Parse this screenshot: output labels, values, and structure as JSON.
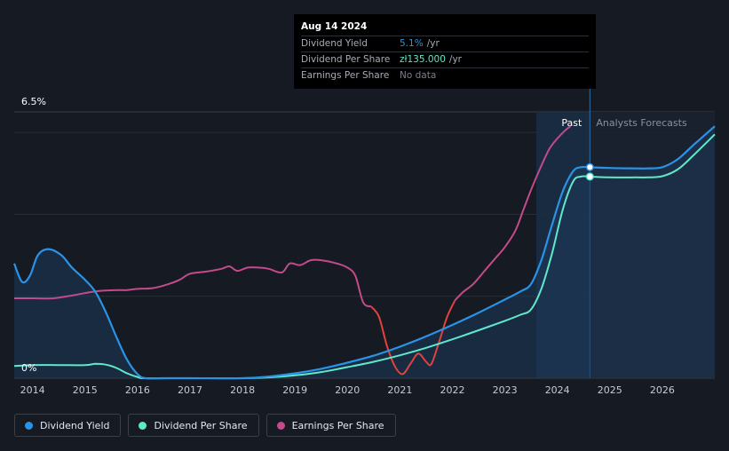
{
  "tooltip": {
    "date": "Aug 14 2024",
    "rows": [
      {
        "label": "Dividend Yield",
        "value": "5.1%",
        "unit": "/yr",
        "color": "#2a93e6"
      },
      {
        "label": "Dividend Per Share",
        "value": "zł135.000",
        "unit": "/yr",
        "color": "#5fe8cc"
      },
      {
        "label": "Earnings Per Share",
        "value": "No data",
        "unit": "",
        "color": "#7a7f88"
      }
    ]
  },
  "legend": [
    {
      "label": "Dividend Yield",
      "color": "#2a93e6"
    },
    {
      "label": "Dividend Per Share",
      "color": "#5fe8cc"
    },
    {
      "label": "Earnings Per Share",
      "color": "#c44a8a"
    }
  ],
  "chart_data": {
    "type": "line",
    "y_max_label": "6.5%",
    "y_min_label": "0%",
    "ylim": [
      0,
      6.5
    ],
    "xlim": [
      2013.65,
      2027.0
    ],
    "x_ticks": [
      "2014",
      "2015",
      "2016",
      "2017",
      "2018",
      "2019",
      "2020",
      "2021",
      "2022",
      "2023",
      "2024",
      "2025",
      "2026"
    ],
    "regions": {
      "past_label": "Past",
      "forecast_label": "Analysts Forecasts",
      "past_start": 2023.6,
      "forecast_start": 2024.62
    },
    "grid": true,
    "legend_position": "bottom-left",
    "colors": {
      "dividend_yield": "#2a93e6",
      "dividend_per_share": "#5fe8cc",
      "earnings_per_share": "#c44a8a",
      "earnings_negative": "#e0423d"
    },
    "series": [
      {
        "name": "Dividend Yield",
        "points": [
          [
            2013.65,
            2.8
          ],
          [
            2013.8,
            2.35
          ],
          [
            2013.95,
            2.5
          ],
          [
            2014.1,
            3.0
          ],
          [
            2014.3,
            3.15
          ],
          [
            2014.55,
            3.0
          ],
          [
            2014.75,
            2.7
          ],
          [
            2015.0,
            2.4
          ],
          [
            2015.2,
            2.1
          ],
          [
            2015.4,
            1.6
          ],
          [
            2015.6,
            1.0
          ],
          [
            2015.8,
            0.45
          ],
          [
            2016.0,
            0.1
          ],
          [
            2016.15,
            0.0
          ],
          [
            2016.5,
            0.0
          ],
          [
            2017.0,
            0.0
          ],
          [
            2018.0,
            0.0
          ],
          [
            2018.5,
            0.04
          ],
          [
            2019.0,
            0.12
          ],
          [
            2019.5,
            0.23
          ],
          [
            2020.0,
            0.38
          ],
          [
            2020.5,
            0.55
          ],
          [
            2021.0,
            0.77
          ],
          [
            2021.5,
            1.02
          ],
          [
            2022.0,
            1.3
          ],
          [
            2022.5,
            1.6
          ],
          [
            2023.0,
            1.92
          ],
          [
            2023.3,
            2.12
          ],
          [
            2023.5,
            2.3
          ],
          [
            2023.7,
            2.9
          ],
          [
            2023.9,
            3.75
          ],
          [
            2024.1,
            4.55
          ],
          [
            2024.3,
            5.05
          ],
          [
            2024.45,
            5.15
          ],
          [
            2024.62,
            5.15
          ],
          [
            2025.0,
            5.13
          ],
          [
            2025.5,
            5.12
          ],
          [
            2025.7,
            5.12
          ],
          [
            2026.0,
            5.15
          ],
          [
            2026.3,
            5.35
          ],
          [
            2026.6,
            5.7
          ],
          [
            2027.0,
            6.15
          ]
        ]
      },
      {
        "name": "Dividend Per Share",
        "points": [
          [
            2013.65,
            0.3
          ],
          [
            2014.0,
            0.32
          ],
          [
            2014.5,
            0.32
          ],
          [
            2015.0,
            0.32
          ],
          [
            2015.2,
            0.35
          ],
          [
            2015.4,
            0.33
          ],
          [
            2015.6,
            0.25
          ],
          [
            2015.8,
            0.12
          ],
          [
            2016.0,
            0.03
          ],
          [
            2016.15,
            0.0
          ],
          [
            2017.0,
            0.0
          ],
          [
            2018.0,
            0.0
          ],
          [
            2018.5,
            0.02
          ],
          [
            2019.0,
            0.07
          ],
          [
            2019.5,
            0.15
          ],
          [
            2020.0,
            0.27
          ],
          [
            2020.5,
            0.4
          ],
          [
            2021.0,
            0.56
          ],
          [
            2021.5,
            0.74
          ],
          [
            2022.0,
            0.95
          ],
          [
            2022.5,
            1.17
          ],
          [
            2023.0,
            1.4
          ],
          [
            2023.3,
            1.55
          ],
          [
            2023.5,
            1.68
          ],
          [
            2023.7,
            2.2
          ],
          [
            2023.9,
            3.05
          ],
          [
            2024.1,
            4.1
          ],
          [
            2024.3,
            4.8
          ],
          [
            2024.45,
            4.92
          ],
          [
            2024.62,
            4.92
          ],
          [
            2025.0,
            4.9
          ],
          [
            2025.5,
            4.9
          ],
          [
            2025.7,
            4.9
          ],
          [
            2026.0,
            4.93
          ],
          [
            2026.3,
            5.1
          ],
          [
            2026.6,
            5.45
          ],
          [
            2027.0,
            5.95
          ]
        ]
      },
      {
        "name": "Earnings Per Share",
        "points": [
          [
            2013.65,
            1.95
          ],
          [
            2014.0,
            1.95
          ],
          [
            2014.4,
            1.95
          ],
          [
            2014.8,
            2.03
          ],
          [
            2015.2,
            2.12
          ],
          [
            2015.6,
            2.15
          ],
          [
            2015.8,
            2.15
          ],
          [
            2016.0,
            2.18
          ],
          [
            2016.3,
            2.2
          ],
          [
            2016.6,
            2.3
          ],
          [
            2016.8,
            2.4
          ],
          [
            2017.0,
            2.55
          ],
          [
            2017.3,
            2.6
          ],
          [
            2017.6,
            2.67
          ],
          [
            2017.75,
            2.73
          ],
          [
            2017.9,
            2.62
          ],
          [
            2018.1,
            2.7
          ],
          [
            2018.3,
            2.7
          ],
          [
            2018.5,
            2.67
          ],
          [
            2018.75,
            2.58
          ],
          [
            2018.9,
            2.8
          ],
          [
            2019.1,
            2.76
          ],
          [
            2019.3,
            2.88
          ],
          [
            2019.5,
            2.88
          ],
          [
            2019.8,
            2.8
          ],
          [
            2020.0,
            2.7
          ],
          [
            2020.15,
            2.5
          ],
          [
            2020.3,
            1.85
          ],
          [
            2020.45,
            1.75
          ],
          [
            2020.6,
            1.5
          ],
          [
            2020.75,
            0.8
          ],
          [
            2020.9,
            0.3
          ],
          [
            2021.05,
            0.1
          ],
          [
            2021.2,
            0.35
          ],
          [
            2021.35,
            0.6
          ],
          [
            2021.5,
            0.4
          ],
          [
            2021.6,
            0.35
          ],
          [
            2021.75,
            0.9
          ],
          [
            2021.9,
            1.5
          ],
          [
            2022.05,
            1.9
          ],
          [
            2022.2,
            2.1
          ],
          [
            2022.4,
            2.3
          ],
          [
            2022.6,
            2.6
          ],
          [
            2022.8,
            2.9
          ],
          [
            2023.0,
            3.2
          ],
          [
            2023.2,
            3.6
          ],
          [
            2023.35,
            4.1
          ],
          [
            2023.5,
            4.6
          ],
          [
            2023.7,
            5.2
          ],
          [
            2023.85,
            5.6
          ],
          [
            2024.0,
            5.85
          ],
          [
            2024.15,
            6.05
          ],
          [
            2024.25,
            6.15
          ]
        ]
      }
    ],
    "highlight": {
      "x": 2024.62,
      "dividend_yield": 5.15,
      "dividend_per_share": 4.92
    }
  }
}
